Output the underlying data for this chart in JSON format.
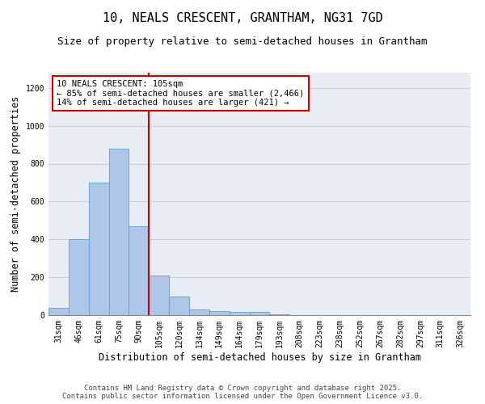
{
  "title_line1": "10, NEALS CRESCENT, GRANTHAM, NG31 7GD",
  "title_line2": "Size of property relative to semi-detached houses in Grantham",
  "xlabel": "Distribution of semi-detached houses by size in Grantham",
  "ylabel": "Number of semi-detached properties",
  "categories": [
    "31sqm",
    "46sqm",
    "61sqm",
    "75sqm",
    "90sqm",
    "105sqm",
    "120sqm",
    "134sqm",
    "149sqm",
    "164sqm",
    "179sqm",
    "193sqm",
    "208sqm",
    "223sqm",
    "238sqm",
    "252sqm",
    "267sqm",
    "282sqm",
    "297sqm",
    "311sqm",
    "326sqm"
  ],
  "values": [
    40,
    400,
    700,
    880,
    470,
    210,
    100,
    30,
    20,
    15,
    15,
    5,
    2,
    1,
    1,
    0,
    0,
    0,
    0,
    0,
    2
  ],
  "bar_color": "#aec6e8",
  "bar_edge_color": "#5a9fd4",
  "vline_color": "#cc0000",
  "annotation_box_text": "10 NEALS CRESCENT: 105sqm\n← 85% of semi-detached houses are smaller (2,466)\n14% of semi-detached houses are larger (421) →",
  "annotation_box_color": "#cc0000",
  "ylim": [
    0,
    1280
  ],
  "yticks": [
    0,
    200,
    400,
    600,
    800,
    1000,
    1200
  ],
  "grid_color": "#cccccc",
  "bg_color": "#e8edf5",
  "footer_text": "Contains HM Land Registry data © Crown copyright and database right 2025.\nContains public sector information licensed under the Open Government Licence v3.0.",
  "title_fontsize": 11,
  "subtitle_fontsize": 9,
  "axis_label_fontsize": 8.5,
  "tick_fontsize": 7,
  "annotation_fontsize": 7.5,
  "footer_fontsize": 6.5
}
